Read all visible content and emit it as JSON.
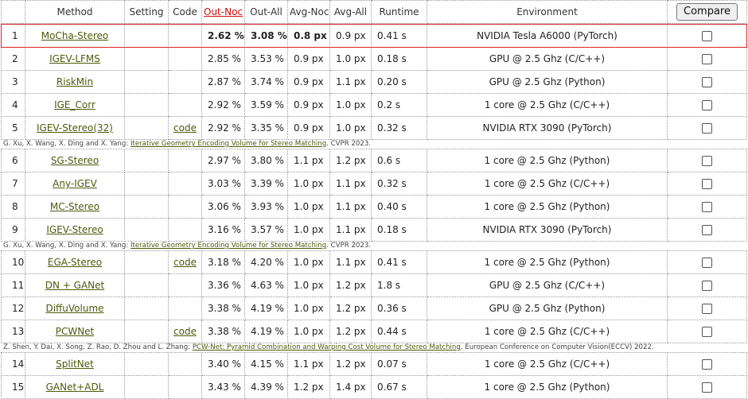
{
  "headers": {
    "rank": "",
    "method": "Method",
    "setting": "Setting",
    "code": "Code",
    "out_noc": "Out-Noc",
    "out_all": "Out-All",
    "avg_noc": "Avg-Noc",
    "avg_all": "Avg-All",
    "runtime": "Runtime",
    "environment": "Environment",
    "compare_button": "Compare"
  },
  "rows": [
    {
      "rank": "1",
      "method": "MoCha-Stereo",
      "setting": "",
      "code": "",
      "out_noc": "2.62 %",
      "out_all": "3.08 %",
      "avg_noc": "0.8 px",
      "avg_all": "0.9 px",
      "runtime": "0.41 s",
      "environment": "NVIDIA Tesla A6000 (PyTorch)",
      "highlight": true
    },
    {
      "rank": "2",
      "method": "IGEV-LFMS",
      "setting": "",
      "code": "",
      "out_noc": "2.85 %",
      "out_all": "3.53 %",
      "avg_noc": "0.9 px",
      "avg_all": "1.0 px",
      "runtime": "0.18 s",
      "environment": "GPU @ 2.5 Ghz (C/C++)"
    },
    {
      "rank": "3",
      "method": "RiskMin",
      "setting": "",
      "code": "",
      "out_noc": "2.87 %",
      "out_all": "3.74 %",
      "avg_noc": "0.9 px",
      "avg_all": "1.1 px",
      "runtime": "0.20 s",
      "environment": "GPU @ 2.5 Ghz (Python)"
    },
    {
      "rank": "4",
      "method": "IGE_Corr",
      "setting": "",
      "code": "",
      "out_noc": "2.92 %",
      "out_all": "3.59 %",
      "avg_noc": "0.9 px",
      "avg_all": "1.0 px",
      "runtime": "0.2 s",
      "environment": "1 core @ 2.5 Ghz (C/C++)"
    },
    {
      "rank": "5",
      "method": "IGEV-Stereo(32)",
      "setting": "",
      "code": "code",
      "out_noc": "2.92 %",
      "out_all": "3.35 %",
      "avg_noc": "0.9 px",
      "avg_all": "1.0 px",
      "runtime": "0.32 s",
      "environment": "NVIDIA RTX 3090 (PyTorch)",
      "citation": {
        "authors": "G. Xu, X. Wang, X. Ding and X. Yang: ",
        "title": "Iterative Geometry Encoding Volume for Stereo Matching",
        "venue": ". CVPR 2023."
      }
    },
    {
      "rank": "6",
      "method": "SG-Stereo",
      "setting": "",
      "code": "",
      "out_noc": "2.97 %",
      "out_all": "3.80 %",
      "avg_noc": "1.1 px",
      "avg_all": "1.2 px",
      "runtime": "0.6 s",
      "environment": "1 core @ 2.5 Ghz (Python)"
    },
    {
      "rank": "7",
      "method": "Any-IGEV",
      "setting": "",
      "code": "",
      "out_noc": "3.03 %",
      "out_all": "3.39 %",
      "avg_noc": "1.0 px",
      "avg_all": "1.1 px",
      "runtime": "0.32 s",
      "environment": "1 core @ 2.5 Ghz (C/C++)"
    },
    {
      "rank": "8",
      "method": "MC-Stereo",
      "setting": "",
      "code": "",
      "out_noc": "3.06 %",
      "out_all": "3.93 %",
      "avg_noc": "1.0 px",
      "avg_all": "1.1 px",
      "runtime": "0.40 s",
      "environment": "1 core @ 2.5 Ghz (Python)"
    },
    {
      "rank": "9",
      "method": "IGEV-Stereo",
      "setting": "",
      "code": "",
      "out_noc": "3.16 %",
      "out_all": "3.57 %",
      "avg_noc": "1.0 px",
      "avg_all": "1.1 px",
      "runtime": "0.18 s",
      "environment": "NVIDIA RTX 3090 (PyTorch)",
      "citation": {
        "authors": "G. Xu, X. Wang, X. Ding and X. Yang: ",
        "title": "Iterative Geometry Encoding Volume for Stereo Matching",
        "venue": ". CVPR 2023."
      }
    },
    {
      "rank": "10",
      "method": "EGA-Stereo",
      "setting": "",
      "code": "code",
      "out_noc": "3.18 %",
      "out_all": "4.20 %",
      "avg_noc": "1.0 px",
      "avg_all": "1.1 px",
      "runtime": "0.41 s",
      "environment": "1 core @ 2.5 Ghz (Python)"
    },
    {
      "rank": "11",
      "method": "DN + GANet",
      "setting": "",
      "code": "",
      "out_noc": "3.36 %",
      "out_all": "4.63 %",
      "avg_noc": "1.0 px",
      "avg_all": "1.2 px",
      "runtime": "1.8 s",
      "environment": "GPU @ 2.5 Ghz (C/C++)"
    },
    {
      "rank": "12",
      "method": "DiffuVolume",
      "setting": "",
      "code": "",
      "out_noc": "3.38 %",
      "out_all": "4.19 %",
      "avg_noc": "1.0 px",
      "avg_all": "1.2 px",
      "runtime": "0.36 s",
      "environment": "GPU @ 2.5 Ghz (Python)"
    },
    {
      "rank": "13",
      "method": "PCWNet",
      "setting": "",
      "code": "code",
      "out_noc": "3.38 %",
      "out_all": "4.19 %",
      "avg_noc": "1.0 px",
      "avg_all": "1.2 px",
      "runtime": "0.44 s",
      "environment": "1 core @ 2.5 Ghz (C/C++)",
      "citation": {
        "authors": "Z. Shen, Y. Dai, X. Song, Z. Rao, D. Zhou and L. Zhang: ",
        "title": "PCW-Net: Pyramid Combination and Warping Cost Volume for Stereo Matching",
        "venue": ". European Conference on Computer Vision(ECCV) 2022."
      }
    },
    {
      "rank": "14",
      "method": "SplitNet",
      "setting": "",
      "code": "",
      "out_noc": "3.40 %",
      "out_all": "4.15 %",
      "avg_noc": "1.1 px",
      "avg_all": "1.2 px",
      "runtime": "0.07 s",
      "environment": "1 core @ 2.5 Ghz (C/C++)"
    },
    {
      "rank": "15",
      "method": "GANet+ADL",
      "setting": "",
      "code": "",
      "out_noc": "3.43 %",
      "out_all": "4.39 %",
      "avg_noc": "1.2 px",
      "avg_all": "1.4 px",
      "runtime": "0.67 s",
      "environment": "1 core @ 2.5 Ghz (Python)"
    }
  ],
  "icons": {
    "row_checkbox": "checkbox-empty"
  },
  "colors": {
    "link": "#4e5a0c",
    "sorted_header": "#cc1111",
    "highlight_border": "#dd2222"
  }
}
